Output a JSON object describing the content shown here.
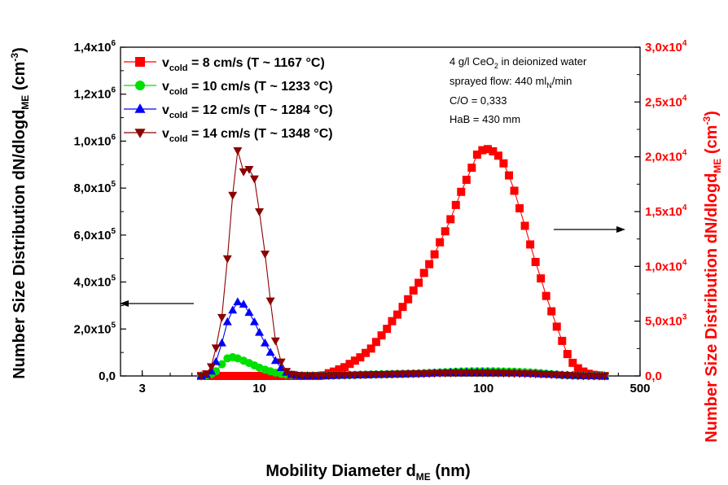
{
  "chart_data": {
    "type": "scatter",
    "x_axis": {
      "label": "Mobility Diameter d",
      "label_sub": "ME",
      "label_unit": " (nm)",
      "scale": "log",
      "range": [
        2.4,
        500
      ],
      "ticks": [
        3,
        10,
        100,
        500
      ],
      "tick_labels": [
        "3",
        "10",
        "100",
        "500"
      ]
    },
    "y_left": {
      "label": "Number Size Distribution dN/dlogd",
      "label_sub": "ME",
      "label_unit": " (cm",
      "label_sup": "-3",
      "label_close": ")",
      "range": [
        0,
        1400000
      ],
      "ticks": [
        0,
        200000,
        400000,
        600000,
        800000,
        1000000,
        1200000,
        1400000
      ],
      "tick_mantissas": [
        "0,0",
        "2,0x10",
        "4,0x10",
        "6,0x10",
        "8,0x10",
        "1,0x10",
        "1,2x10",
        "1,4x10"
      ],
      "tick_exponents": [
        "",
        "5",
        "5",
        "5",
        "5",
        "6",
        "6",
        "6"
      ],
      "color": "#000000"
    },
    "y_right": {
      "label": "Number Size Distribution dN/dlogd",
      "label_sub": "ME",
      "label_unit": " (cm",
      "label_sup": "-3",
      "label_close": ")",
      "range": [
        0,
        30000
      ],
      "ticks": [
        0,
        5000,
        10000,
        15000,
        20000,
        25000,
        30000
      ],
      "tick_mantissas": [
        "0,0",
        "5,0x10",
        "1,0x10",
        "1,5x10",
        "2,0x10",
        "2,5x10",
        "3,0x10"
      ],
      "tick_exponents": [
        "",
        "3",
        "4",
        "4",
        "4",
        "4",
        "4"
      ],
      "color": "#ff0000"
    },
    "legend": {
      "placement": "top-left",
      "entries": [
        {
          "prefix": "v",
          "sub": "cold",
          "text": " = 8 cm/s (T ~ 1167 °C)",
          "color": "#ff0000",
          "marker": "square"
        },
        {
          "prefix": "v",
          "sub": "cold",
          "text": " = 10 cm/s (T ~ 1233 °C)",
          "color": "#00e000",
          "marker": "circle"
        },
        {
          "prefix": "v",
          "sub": "cold",
          "text": " = 12 cm/s (T ~ 1284 °C)",
          "color": "#0000ff",
          "marker": "triangle-up"
        },
        {
          "prefix": "v",
          "sub": "cold",
          "text": " = 14 cm/s (T ~ 1348 °C)",
          "color": "#8b0000",
          "marker": "triangle-down"
        }
      ]
    },
    "annotation": {
      "line1_a": "4 g/l CeO",
      "line1_sub": "2",
      "line1_b": " in deionized water",
      "line2_a": "sprayed flow: 440 ml",
      "line2_sub": "N",
      "line2_b": "/min",
      "line3": "C/O = 0,333",
      "line4": "HaB = 430 mm"
    },
    "arrows": [
      {
        "direction": "left",
        "points_to_axis": "left"
      },
      {
        "direction": "right",
        "points_to_axis": "right"
      }
    ],
    "series": [
      {
        "name": "v_cold = 8 cm/s (T ~ 1167 °C)",
        "axis": "right",
        "color": "#ff0000",
        "marker": "square",
        "x": [
          5.5,
          5.8,
          6.1,
          6.4,
          6.8,
          7.2,
          7.6,
          8.0,
          8.5,
          9.0,
          9.5,
          10.0,
          10.6,
          11.2,
          11.8,
          12.5,
          13.2,
          13.9,
          14.7,
          15.5,
          16.4,
          17.3,
          18.3,
          19.3,
          20.4,
          21.5,
          22.7,
          24.0,
          25.3,
          26.7,
          28.2,
          29.8,
          31.5,
          33.2,
          35.1,
          37.1,
          39.1,
          41.3,
          43.6,
          46.1,
          48.7,
          51.4,
          54.3,
          57.3,
          60.5,
          63.9,
          67.5,
          71.3,
          75.3,
          79.5,
          84.0,
          88.7,
          93.7,
          98.9,
          104.5,
          110.3,
          116.5,
          123.0,
          130.0,
          137.3,
          145.0,
          153.1,
          161.7,
          170.8,
          180.4,
          190.5,
          201.2,
          212.5,
          224.4,
          237.0,
          250.3,
          264.3,
          279.2,
          294.9,
          311.5,
          329.0,
          347.5
        ],
        "y": [
          0,
          0,
          0,
          0,
          0,
          0,
          0,
          0,
          0,
          0,
          0,
          0,
          0,
          0,
          0,
          0,
          0,
          0,
          0,
          0,
          0,
          0,
          0,
          50,
          250,
          400,
          600,
          800,
          1100,
          1400,
          1700,
          2100,
          2500,
          3100,
          3700,
          4300,
          5000,
          5600,
          6300,
          7000,
          7800,
          8500,
          9400,
          10200,
          11100,
          12200,
          13200,
          14300,
          15600,
          16800,
          17900,
          19000,
          20200,
          20600,
          20700,
          20500,
          20100,
          19400,
          18300,
          16900,
          15300,
          13700,
          12000,
          10400,
          8900,
          7300,
          5900,
          4500,
          3200,
          2000,
          1200,
          700,
          400,
          200,
          100,
          50,
          0
        ]
      },
      {
        "name": "v_cold = 10 cm/s (T ~ 1233 °C)",
        "axis": "left",
        "color": "#00e000",
        "marker": "circle",
        "x": [
          5.5,
          5.8,
          6.1,
          6.4,
          6.8,
          7.2,
          7.6,
          8.0,
          8.5,
          9.0,
          9.5,
          10.0,
          10.6,
          11.2,
          11.8,
          12.5,
          13.2,
          13.9,
          14.7,
          15.5,
          16.4,
          17.3,
          18.3,
          19.3,
          20.4,
          21.5,
          22.7,
          24.0,
          25.3,
          26.7,
          28.2,
          29.8,
          31.5,
          33.2,
          35.1,
          37.1,
          39.1,
          41.3,
          43.6,
          46.1,
          48.7,
          51.4,
          54.3,
          57.3,
          60.5,
          63.9,
          67.5,
          71.3,
          75.3,
          79.5,
          84.0,
          88.7,
          93.7,
          98.9,
          104.5,
          110.3,
          116.5,
          123.0,
          130.0,
          137.3,
          145.0,
          153.1,
          161.7,
          170.8,
          180.4,
          190.5,
          201.2,
          212.5,
          224.4,
          237.0,
          250.3,
          264.3,
          279.2,
          294.9,
          311.5,
          329.0,
          347.5
        ],
        "y": [
          0,
          2000,
          8000,
          20000,
          50000,
          75000,
          80000,
          75000,
          65000,
          55000,
          45000,
          35000,
          27000,
          20000,
          14000,
          9000,
          6000,
          4000,
          2500,
          1500,
          1000,
          1000,
          1000,
          1500,
          2000,
          2500,
          3000,
          3500,
          4000,
          4500,
          5000,
          5500,
          6000,
          6500,
          7000,
          7500,
          8000,
          8500,
          9000,
          9500,
          10000,
          11000,
          12000,
          13000,
          14000,
          15000,
          16000,
          17000,
          18000,
          19000,
          19500,
          20000,
          20000,
          20000,
          20000,
          20000,
          19500,
          19000,
          18500,
          18000,
          17000,
          16000,
          15000,
          14000,
          12000,
          10000,
          8000,
          6000,
          4000,
          3000,
          2000,
          1500,
          1000,
          500,
          300,
          100,
          0
        ]
      },
      {
        "name": "v_cold = 12 cm/s (T ~ 1284 °C)",
        "axis": "left",
        "color": "#0000ff",
        "marker": "triangle-up",
        "x": [
          5.5,
          5.8,
          6.1,
          6.4,
          6.8,
          7.2,
          7.6,
          8.0,
          8.5,
          9.0,
          9.5,
          10.0,
          10.6,
          11.2,
          11.8,
          12.5,
          13.2,
          13.9,
          14.7,
          15.5,
          16.4,
          17.3,
          18.3,
          19.3,
          20.4,
          21.5,
          22.7,
          24.0,
          25.3,
          26.7,
          28.2,
          29.8,
          31.5,
          33.2,
          35.1,
          37.1,
          39.1,
          41.3,
          43.6,
          46.1,
          48.7,
          51.4,
          54.3,
          57.3,
          60.5,
          63.9,
          67.5,
          71.3,
          75.3,
          79.5,
          84.0,
          88.7,
          93.7,
          98.9,
          104.5,
          110.3,
          116.5,
          123.0,
          130.0,
          137.3,
          145.0,
          153.1,
          161.7,
          170.8,
          180.4,
          190.5,
          201.2,
          212.5,
          224.4,
          237.0,
          250.3,
          264.3,
          279.2,
          294.9,
          311.5,
          329.0,
          347.5
        ],
        "y": [
          0,
          5000,
          20000,
          60000,
          140000,
          230000,
          280000,
          315000,
          305000,
          270000,
          230000,
          185000,
          140000,
          100000,
          65000,
          35000,
          15000,
          5000,
          2000,
          1000,
          500,
          500,
          500,
          1000,
          1000,
          1500,
          2000,
          2500,
          3000,
          3500,
          4000,
          4500,
          5000,
          5500,
          6000,
          6500,
          7000,
          7500,
          8000,
          8500,
          9000,
          9500,
          10000,
          11000,
          12000,
          13000,
          14000,
          15000,
          15500,
          16000,
          16000,
          16000,
          16000,
          16000,
          15500,
          15000,
          14500,
          14000,
          13500,
          13000,
          12000,
          11000,
          10000,
          9000,
          8000,
          7000,
          6000,
          5000,
          4000,
          3000,
          2000,
          1500,
          1000,
          500,
          300,
          100,
          0
        ]
      },
      {
        "name": "v_cold = 14 cm/s (T ~ 1348 °C)",
        "axis": "left",
        "color": "#8b0000",
        "marker": "triangle-down",
        "x": [
          5.5,
          5.8,
          6.1,
          6.4,
          6.8,
          7.2,
          7.6,
          8.0,
          8.5,
          9.0,
          9.5,
          10.0,
          10.6,
          11.2,
          11.8,
          12.5,
          13.2,
          13.9,
          14.7,
          15.5,
          16.4,
          17.3,
          18.3,
          19.3,
          20.4,
          21.5,
          22.7,
          24.0,
          25.3,
          26.7,
          28.2,
          29.8,
          31.5,
          33.2,
          35.1,
          37.1,
          39.1,
          41.3,
          43.6,
          46.1,
          48.7,
          51.4,
          54.3,
          57.3,
          60.5,
          63.9,
          67.5,
          71.3,
          75.3,
          79.5,
          84.0,
          88.7,
          93.7,
          98.9,
          104.5,
          110.3,
          116.5,
          123.0,
          130.0,
          137.3,
          145.0,
          153.1,
          161.7,
          170.8,
          180.4,
          190.5,
          201.2,
          212.5,
          224.4,
          237.0,
          250.3,
          264.3,
          279.2,
          294.9,
          311.5,
          329.0,
          347.5
        ],
        "y": [
          0,
          10000,
          40000,
          120000,
          250000,
          500000,
          770000,
          960000,
          870000,
          880000,
          840000,
          700000,
          520000,
          320000,
          150000,
          60000,
          20000,
          8000,
          3000,
          1500,
          1000,
          1000,
          1000,
          1500,
          2000,
          2500,
          3000,
          3500,
          4000,
          4500,
          5000,
          5500,
          6000,
          6500,
          7000,
          7500,
          8000,
          8500,
          9000,
          9500,
          10000,
          10000,
          10500,
          11000,
          11500,
          12000,
          12500,
          13000,
          13500,
          14000,
          14000,
          14000,
          14000,
          14000,
          13500,
          13000,
          12500,
          12000,
          11500,
          11000,
          10500,
          10000,
          9500,
          9000,
          8000,
          7000,
          6000,
          5000,
          4000,
          3000,
          2000,
          1500,
          1000,
          500,
          300,
          100,
          0
        ]
      }
    ]
  }
}
